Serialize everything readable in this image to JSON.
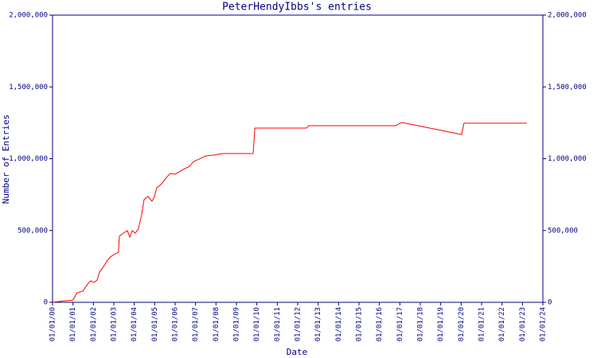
{
  "chart_data": {
    "type": "line",
    "title": "PeterHendyIbbs's entries",
    "x_label": "Date",
    "y_label": "Number of Entries",
    "xlim": [
      2000,
      2024
    ],
    "xticks": [
      {
        "value": 2000,
        "label": "01/01/00"
      },
      {
        "value": 2001,
        "label": "01/01/01"
      },
      {
        "value": 2002,
        "label": "01/01/02"
      },
      {
        "value": 2003,
        "label": "01/01/03"
      },
      {
        "value": 2004,
        "label": "01/01/04"
      },
      {
        "value": 2005,
        "label": "01/01/05"
      },
      {
        "value": 2006,
        "label": "01/01/06"
      },
      {
        "value": 2007,
        "label": "01/01/07"
      },
      {
        "value": 2008,
        "label": "01/01/08"
      },
      {
        "value": 2009,
        "label": "01/01/09"
      },
      {
        "value": 2010,
        "label": "01/01/10"
      },
      {
        "value": 2011,
        "label": "01/01/11"
      },
      {
        "value": 2012,
        "label": "01/01/12"
      },
      {
        "value": 2013,
        "label": "01/01/13"
      },
      {
        "value": 2014,
        "label": "01/01/14"
      },
      {
        "value": 2015,
        "label": "01/01/15"
      },
      {
        "value": 2016,
        "label": "01/01/16"
      },
      {
        "value": 2017,
        "label": "01/01/17"
      },
      {
        "value": 2018,
        "label": "01/01/18"
      },
      {
        "value": 2019,
        "label": "01/01/19"
      },
      {
        "value": 2020,
        "label": "01/01/20"
      },
      {
        "value": 2021,
        "label": "01/01/21"
      },
      {
        "value": 2022,
        "label": "01/01/22"
      },
      {
        "value": 2023,
        "label": "01/01/23"
      },
      {
        "value": 2024,
        "label": "01/01/24"
      }
    ],
    "ylim": [
      0,
      2000000
    ],
    "yticks": [
      0,
      {
        "value": 500000,
        "label": "500,000"
      },
      {
        "value": 1000000,
        "label": "1,000,000"
      },
      {
        "value": 1500000,
        "label": "1,500,000"
      },
      {
        "value": 2000000,
        "label": "2,000,000"
      }
    ],
    "axis_color": "#000080",
    "series": [
      {
        "color": "#ff0000",
        "x": [
          2000.0,
          2000.55,
          2001.0,
          2001.2,
          2001.48,
          2001.75,
          2001.87,
          2002.03,
          2002.18,
          2002.3,
          2002.5,
          2002.69,
          2002.88,
          2003.08,
          2003.23,
          2003.27,
          2003.47,
          2003.66,
          2003.78,
          2003.9,
          2004.05,
          2004.2,
          2004.36,
          2004.48,
          2004.67,
          2004.87,
          2004.99,
          2005.1,
          2005.34,
          2005.61,
          2005.77,
          2006.0,
          2006.39,
          2006.7,
          2006.9,
          2007.17,
          2007.48,
          2007.87,
          2008.34,
          2008.92,
          2009.82,
          2009.9,
          2011.84,
          2012.43,
          2012.54,
          2016.79,
          2017.1,
          2017.49,
          2020.02,
          2020.14,
          2023.22
        ],
        "values": [
          0,
          10000,
          15000,
          66000,
          78000,
          133000,
          150000,
          138000,
          155000,
          210000,
          250000,
          294000,
          321000,
          338000,
          349000,
          460000,
          482000,
          499000,
          454000,
          499000,
          482000,
          510000,
          609000,
          715000,
          737000,
          704000,
          737000,
          798000,
          825000,
          875000,
          897000,
          892000,
          925000,
          947000,
          980000,
          997000,
          1019000,
          1025000,
          1036000,
          1036000,
          1036000,
          1213000,
          1213000,
          1213000,
          1230000,
          1230000,
          1252000,
          1241000,
          1169000,
          1247000,
          1247000
        ]
      }
    ]
  }
}
